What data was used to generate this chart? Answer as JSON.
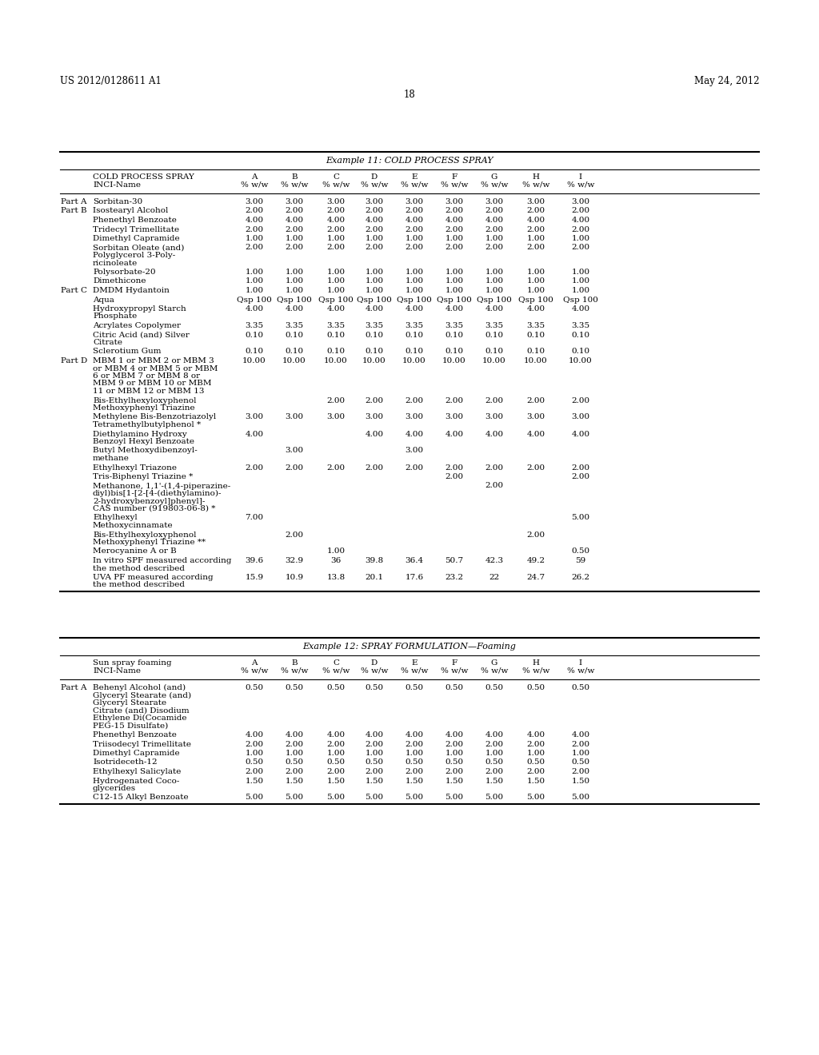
{
  "header_left": "US 2012/0128611 A1",
  "header_right": "May 24, 2012",
  "page_number": "18",
  "table1": {
    "title": "Example 11: COLD PROCESS SPRAY",
    "rows": [
      {
        "part": "Part A",
        "name": "Sorbitan-30",
        "vals": [
          "3.00",
          "3.00",
          "3.00",
          "3.00",
          "3.00",
          "3.00",
          "3.00",
          "3.00",
          "3.00"
        ]
      },
      {
        "part": "Part B",
        "name": "Isostearyl Alcohol",
        "vals": [
          "2.00",
          "2.00",
          "2.00",
          "2.00",
          "2.00",
          "2.00",
          "2.00",
          "2.00",
          "2.00"
        ]
      },
      {
        "part": "",
        "name": "Phenethyl Benzoate",
        "vals": [
          "4.00",
          "4.00",
          "4.00",
          "4.00",
          "4.00",
          "4.00",
          "4.00",
          "4.00",
          "4.00"
        ]
      },
      {
        "part": "",
        "name": "Tridecyl Trimellitate",
        "vals": [
          "2.00",
          "2.00",
          "2.00",
          "2.00",
          "2.00",
          "2.00",
          "2.00",
          "2.00",
          "2.00"
        ]
      },
      {
        "part": "",
        "name": "Dimethyl Capramide",
        "vals": [
          "1.00",
          "1.00",
          "1.00",
          "1.00",
          "1.00",
          "1.00",
          "1.00",
          "1.00",
          "1.00"
        ]
      },
      {
        "part": "",
        "name": "Sorbitan Oleate (and)\nPolyglycerol 3-Poly-\nricinoleate",
        "vals": [
          "2.00",
          "2.00",
          "2.00",
          "2.00",
          "2.00",
          "2.00",
          "2.00",
          "2.00",
          "2.00"
        ]
      },
      {
        "part": "",
        "name": "Polysorbate-20",
        "vals": [
          "1.00",
          "1.00",
          "1.00",
          "1.00",
          "1.00",
          "1.00",
          "1.00",
          "1.00",
          "1.00"
        ]
      },
      {
        "part": "",
        "name": "Dimethicone",
        "vals": [
          "1.00",
          "1.00",
          "1.00",
          "1.00",
          "1.00",
          "1.00",
          "1.00",
          "1.00",
          "1.00"
        ]
      },
      {
        "part": "Part C",
        "name": "DMDM Hydantoin",
        "vals": [
          "1.00",
          "1.00",
          "1.00",
          "1.00",
          "1.00",
          "1.00",
          "1.00",
          "1.00",
          "1.00"
        ]
      },
      {
        "part": "",
        "name": "Aqua",
        "vals": [
          "Qsp 100",
          "Qsp 100",
          "Qsp 100",
          "Qsp 100",
          "Qsp 100",
          "Qsp 100",
          "Qsp 100",
          "Qsp 100",
          "Qsp 100"
        ]
      },
      {
        "part": "",
        "name": "Hydroxypropyl Starch\nPhosphate",
        "vals": [
          "4.00",
          "4.00",
          "4.00",
          "4.00",
          "4.00",
          "4.00",
          "4.00",
          "4.00",
          "4.00"
        ]
      },
      {
        "part": "",
        "name": "Acrylates Copolymer",
        "vals": [
          "3.35",
          "3.35",
          "3.35",
          "3.35",
          "3.35",
          "3.35",
          "3.35",
          "3.35",
          "3.35"
        ]
      },
      {
        "part": "",
        "name": "Citric Acid (and) Silver\nCitrate",
        "vals": [
          "0.10",
          "0.10",
          "0.10",
          "0.10",
          "0.10",
          "0.10",
          "0.10",
          "0.10",
          "0.10"
        ]
      },
      {
        "part": "",
        "name": "Sclerotium Gum",
        "vals": [
          "0.10",
          "0.10",
          "0.10",
          "0.10",
          "0.10",
          "0.10",
          "0.10",
          "0.10",
          "0.10"
        ]
      },
      {
        "part": "Part D",
        "name": "MBM 1 or MBM 2 or MBM 3\nor MBM 4 or MBM 5 or MBM\n6 or MBM 7 or MBM 8 or\nMBM 9 or MBM 10 or MBM\n11 or MBM 12 or MBM 13",
        "vals": [
          "10.00",
          "10.00",
          "10.00",
          "10.00",
          "10.00",
          "10.00",
          "10.00",
          "10.00",
          "10.00"
        ]
      },
      {
        "part": "",
        "name": "Bis-Ethylhexyloxyphenol\nMethoxyphenyl Triazine",
        "vals": [
          "",
          "",
          "2.00",
          "2.00",
          "2.00",
          "2.00",
          "2.00",
          "2.00",
          "2.00"
        ]
      },
      {
        "part": "",
        "name": "Methylene Bis-Benzotriazolyl\nTetramethylbutylphenol *",
        "vals": [
          "3.00",
          "3.00",
          "3.00",
          "3.00",
          "3.00",
          "3.00",
          "3.00",
          "3.00",
          "3.00"
        ]
      },
      {
        "part": "",
        "name": "Diethylamino Hydroxy\nBenzoyl Hexyl Benzoate",
        "vals": [
          "4.00",
          "",
          "",
          "4.00",
          "4.00",
          "4.00",
          "4.00",
          "4.00",
          "4.00"
        ]
      },
      {
        "part": "",
        "name": "Butyl Methoxydibenzoyl-\nmethane",
        "vals": [
          "",
          "3.00",
          "",
          "",
          "3.00",
          "",
          "",
          "",
          ""
        ]
      },
      {
        "part": "",
        "name": "Ethylhexyl Triazone",
        "vals": [
          "2.00",
          "2.00",
          "2.00",
          "2.00",
          "2.00",
          "2.00",
          "2.00",
          "2.00",
          "2.00"
        ]
      },
      {
        "part": "",
        "name": "Tris-Biphenyl Triazine *",
        "vals": [
          "",
          "",
          "",
          "",
          "",
          "2.00",
          "",
          "",
          "2.00"
        ]
      },
      {
        "part": "",
        "name": "Methanone, 1,1'-(1,4-piperazine-\ndiyl)bis[1-[2-[4-(diethylamino)-\n2-hydroxybenzoyl]phenyl]-\nCAS number (919803-06-8) *",
        "vals": [
          "",
          "",
          "",
          "",
          "",
          "",
          "2.00",
          "",
          ""
        ]
      },
      {
        "part": "",
        "name": "Ethylhexyl\nMethoxycinnamate",
        "vals": [
          "7.00",
          "",
          "",
          "",
          "",
          "",
          "",
          "",
          "5.00"
        ]
      },
      {
        "part": "",
        "name": "Bis-Ethylhexyloxyphenol\nMethoxyphenyl Triazine **",
        "vals": [
          "",
          "2.00",
          "",
          "",
          "",
          "",
          "",
          "2.00",
          ""
        ]
      },
      {
        "part": "",
        "name": "Merocyanine A or B",
        "vals": [
          "",
          "",
          "1.00",
          "",
          "",
          "",
          "",
          "",
          "0.50"
        ]
      },
      {
        "part": "",
        "name": "In vitro SPF measured according\nthe method described",
        "vals": [
          "39.6",
          "32.9",
          "36",
          "39.8",
          "36.4",
          "50.7",
          "42.3",
          "49.2",
          "59"
        ]
      },
      {
        "part": "",
        "name": "UVA PF measured according\nthe method described",
        "vals": [
          "15.9",
          "10.9",
          "13.8",
          "20.1",
          "17.6",
          "23.2",
          "22",
          "24.7",
          "26.2"
        ]
      }
    ]
  },
  "table2": {
    "title": "Example 12: SPRAY FORMULATION—Foaming",
    "rows": [
      {
        "part": "Part A",
        "name": "Behenyl Alcohol (and)\nGlyceryl Stearate (and)\nGlyceryl Stearate\nCitrate (and) Disodium\nEthylene Di(Cocamide\nPEG-15 Disulfate)",
        "vals": [
          "0.50",
          "0.50",
          "0.50",
          "0.50",
          "0.50",
          "0.50",
          "0.50",
          "0.50",
          "0.50"
        ]
      },
      {
        "part": "",
        "name": "Phenethyl Benzoate",
        "vals": [
          "4.00",
          "4.00",
          "4.00",
          "4.00",
          "4.00",
          "4.00",
          "4.00",
          "4.00",
          "4.00"
        ]
      },
      {
        "part": "",
        "name": "Triisodecyl Trimellitate",
        "vals": [
          "2.00",
          "2.00",
          "2.00",
          "2.00",
          "2.00",
          "2.00",
          "2.00",
          "2.00",
          "2.00"
        ]
      },
      {
        "part": "",
        "name": "Dimethyl Capramide",
        "vals": [
          "1.00",
          "1.00",
          "1.00",
          "1.00",
          "1.00",
          "1.00",
          "1.00",
          "1.00",
          "1.00"
        ]
      },
      {
        "part": "",
        "name": "Isotrideceth-12",
        "vals": [
          "0.50",
          "0.50",
          "0.50",
          "0.50",
          "0.50",
          "0.50",
          "0.50",
          "0.50",
          "0.50"
        ]
      },
      {
        "part": "",
        "name": "Ethylhexyl Salicylate",
        "vals": [
          "2.00",
          "2.00",
          "2.00",
          "2.00",
          "2.00",
          "2.00",
          "2.00",
          "2.00",
          "2.00"
        ]
      },
      {
        "part": "",
        "name": "Hydrogenated Coco-\nglycerides",
        "vals": [
          "1.50",
          "1.50",
          "1.50",
          "1.50",
          "1.50",
          "1.50",
          "1.50",
          "1.50",
          "1.50"
        ]
      },
      {
        "part": "",
        "name": "C12-15 Alkyl Benzoate",
        "vals": [
          "5.00",
          "5.00",
          "5.00",
          "5.00",
          "5.00",
          "5.00",
          "5.00",
          "5.00",
          "5.00"
        ]
      }
    ]
  }
}
